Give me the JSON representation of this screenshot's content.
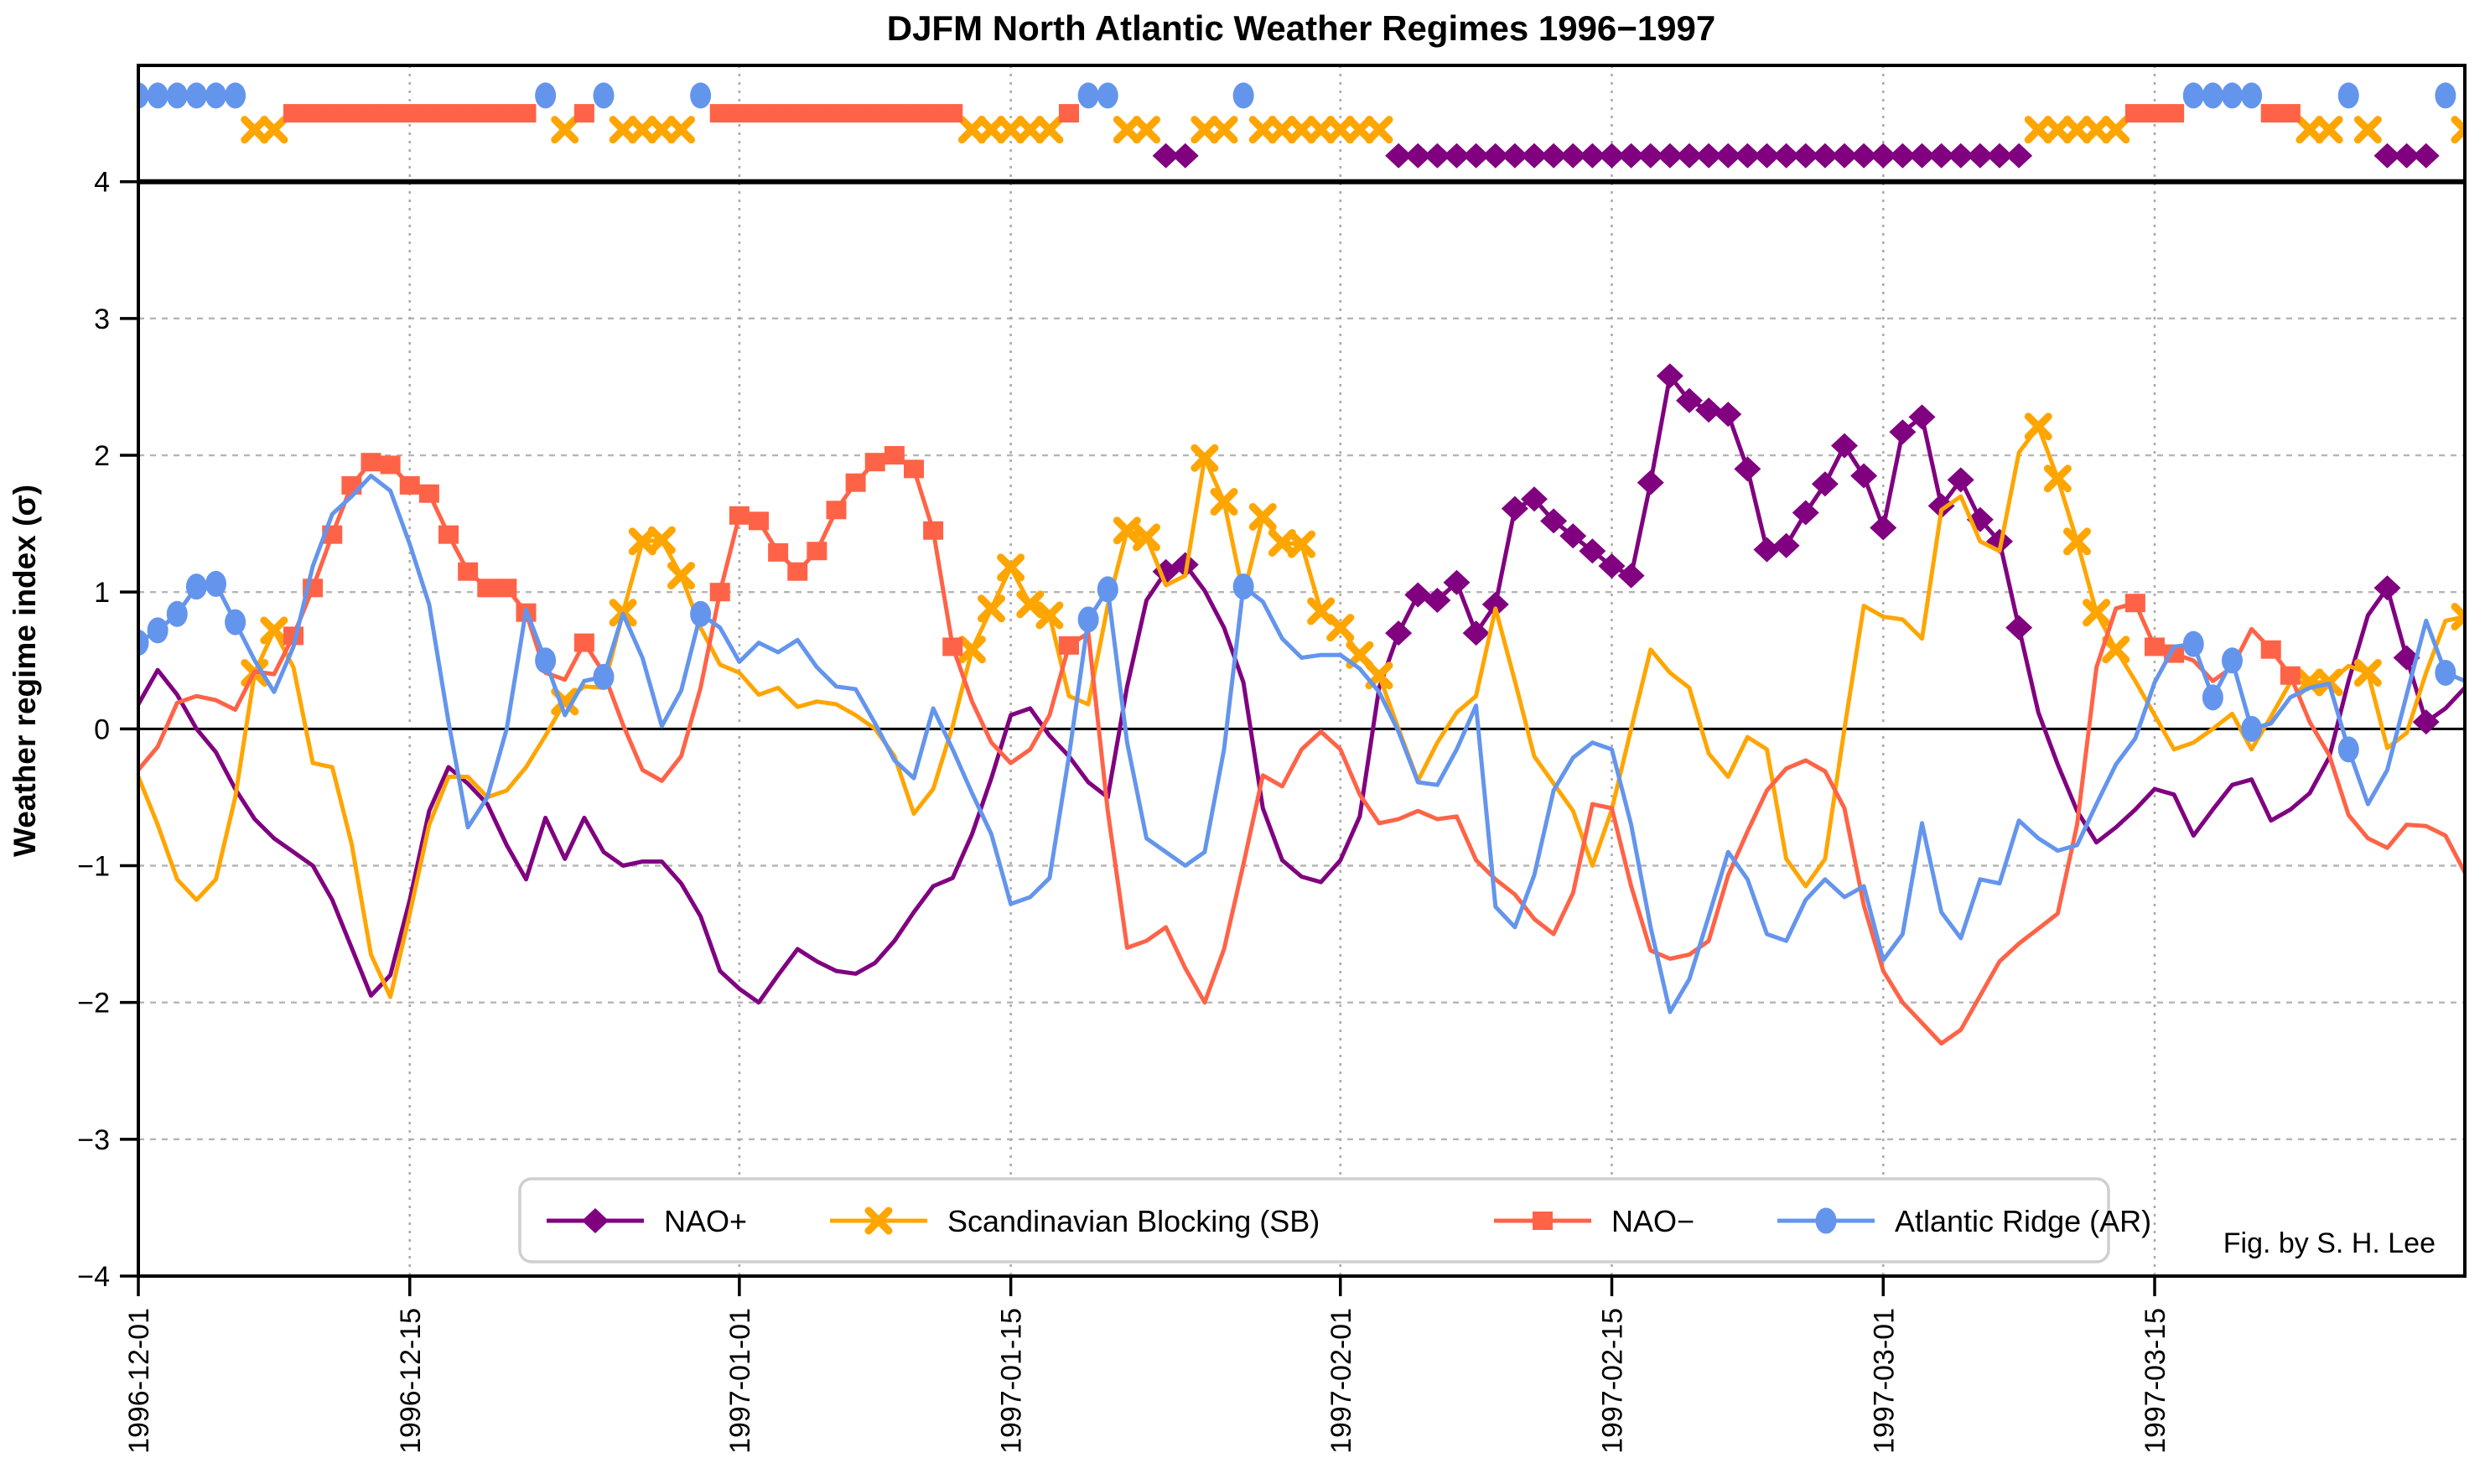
{
  "title": "DJFM North Atlantic Weather Regimes 1996−1997",
  "credit": "Fig. by S. H. Lee",
  "y_axis": {
    "label": "Weather regime index (σ)",
    "tick_values": [
      -4,
      -3,
      -2,
      -1,
      0,
      1,
      2,
      3,
      4
    ],
    "tick_labels": [
      "−4",
      "−3",
      "−2",
      "−1",
      "0",
      "1",
      "2",
      "3",
      "4"
    ],
    "lim": [
      -4,
      4.85
    ]
  },
  "x_axis": {
    "tick_labels": [
      "1996-12-01",
      "1996-12-15",
      "1997-01-01",
      "1997-01-15",
      "1997-02-01",
      "1997-02-15",
      "1997-03-01",
      "1997-03-15"
    ],
    "tick_day_index": [
      0,
      14,
      31,
      45,
      62,
      76,
      90,
      104
    ]
  },
  "legend": {
    "items": [
      {
        "id": "NAO+",
        "label": "NAO+"
      },
      {
        "id": "SB",
        "label": "Scandinavian Blocking (SB)"
      },
      {
        "id": "NAO-",
        "label": "NAO−"
      },
      {
        "id": "AR",
        "label": "Atlantic Ridge (AR)"
      }
    ]
  },
  "chart_data": {
    "type": "line",
    "title": "DJFM North Atlantic Weather Regimes 1996−1997",
    "ylabel": "Weather regime index (σ)",
    "ylim": [
      -4,
      4.85
    ],
    "grid": {
      "horizontal": "dashed at integer σ",
      "vertical": "dotted at major date ticks"
    },
    "legend_position": "bottom center inside",
    "x": [
      "1996-12-01",
      "1996-12-02",
      "1996-12-03",
      "1996-12-04",
      "1996-12-05",
      "1996-12-06",
      "1996-12-07",
      "1996-12-08",
      "1996-12-09",
      "1996-12-10",
      "1996-12-11",
      "1996-12-12",
      "1996-12-13",
      "1996-12-14",
      "1996-12-15",
      "1996-12-16",
      "1996-12-17",
      "1996-12-18",
      "1996-12-19",
      "1996-12-20",
      "1996-12-21",
      "1996-12-22",
      "1996-12-23",
      "1996-12-24",
      "1996-12-25",
      "1996-12-26",
      "1996-12-27",
      "1996-12-28",
      "1996-12-29",
      "1996-12-30",
      "1996-12-31",
      "1997-01-01",
      "1997-01-02",
      "1997-01-03",
      "1997-01-04",
      "1997-01-05",
      "1997-01-06",
      "1997-01-07",
      "1997-01-08",
      "1997-01-09",
      "1997-01-10",
      "1997-01-11",
      "1997-01-12",
      "1997-01-13",
      "1997-01-14",
      "1997-01-15",
      "1997-01-16",
      "1997-01-17",
      "1997-01-18",
      "1997-01-19",
      "1997-01-20",
      "1997-01-21",
      "1997-01-22",
      "1997-01-23",
      "1997-01-24",
      "1997-01-25",
      "1997-01-26",
      "1997-01-27",
      "1997-01-28",
      "1997-01-29",
      "1997-01-30",
      "1997-01-31",
      "1997-02-01",
      "1997-02-02",
      "1997-02-03",
      "1997-02-04",
      "1997-02-05",
      "1997-02-06",
      "1997-02-07",
      "1997-02-08",
      "1997-02-09",
      "1997-02-10",
      "1997-02-11",
      "1997-02-12",
      "1997-02-13",
      "1997-02-14",
      "1997-02-15",
      "1997-02-16",
      "1997-02-17",
      "1997-02-18",
      "1997-02-19",
      "1997-02-20",
      "1997-02-21",
      "1997-02-22",
      "1997-02-23",
      "1997-02-24",
      "1997-02-25",
      "1997-02-26",
      "1997-02-27",
      "1997-02-28",
      "1997-03-01",
      "1997-03-02",
      "1997-03-03",
      "1997-03-04",
      "1997-03-05",
      "1997-03-06",
      "1997-03-07",
      "1997-03-08",
      "1997-03-09",
      "1997-03-10",
      "1997-03-11",
      "1997-03-12",
      "1997-03-13",
      "1997-03-14",
      "1997-03-15",
      "1997-03-16",
      "1997-03-17",
      "1997-03-18",
      "1997-03-19",
      "1997-03-20",
      "1997-03-21",
      "1997-03-22",
      "1997-03-23",
      "1997-03-24",
      "1997-03-25",
      "1997-03-26",
      "1997-03-27",
      "1997-03-28",
      "1997-03-29",
      "1997-03-30",
      "1997-03-31"
    ],
    "series": [
      {
        "id": "NAO+",
        "name": "NAO+",
        "marker": "diamond",
        "color": "#800080",
        "strip_y": 4.19,
        "values": [
          0.18,
          0.43,
          0.25,
          0.0,
          -0.17,
          -0.44,
          -0.66,
          -0.8,
          -0.9,
          -1.0,
          -1.25,
          -1.6,
          -1.95,
          -1.8,
          -1.25,
          -0.6,
          -0.28,
          -0.4,
          -0.55,
          -0.85,
          -1.1,
          -0.65,
          -0.95,
          -0.65,
          -0.9,
          -1.0,
          -0.97,
          -0.97,
          -1.13,
          -1.37,
          -1.77,
          -1.9,
          -2.0,
          -1.8,
          -1.61,
          -1.7,
          -1.77,
          -1.79,
          -1.71,
          -1.55,
          -1.34,
          -1.15,
          -1.09,
          -0.77,
          -0.36,
          0.1,
          0.15,
          -0.05,
          -0.2,
          -0.39,
          -0.5,
          0.31,
          0.94,
          1.15,
          1.2,
          1.01,
          0.74,
          0.34,
          -0.58,
          -0.96,
          -1.08,
          -1.12,
          -0.96,
          -0.64,
          0.3,
          0.7,
          0.98,
          0.94,
          1.07,
          0.7,
          0.91,
          1.61,
          1.68,
          1.52,
          1.41,
          1.3,
          1.19,
          1.12,
          1.8,
          2.58,
          2.4,
          2.33,
          2.3,
          1.9,
          1.31,
          1.34,
          1.58,
          1.79,
          2.07,
          1.85,
          1.47,
          2.17,
          2.28,
          1.63,
          1.82,
          1.53,
          1.37,
          0.74,
          0.12,
          -0.26,
          -0.6,
          -0.83,
          -0.72,
          -0.59,
          -0.44,
          -0.48,
          -0.78,
          -0.59,
          -0.41,
          -0.37,
          -0.67,
          -0.59,
          -0.47,
          -0.21,
          0.35,
          0.83,
          1.03,
          0.52,
          0.05,
          0.15,
          0.3
        ]
      },
      {
        "id": "SB",
        "name": "Scandinavian Blocking (SB)",
        "marker": "x",
        "color": "#FFA500",
        "strip_y": 4.38,
        "values": [
          -0.35,
          -0.7,
          -1.1,
          -1.25,
          -1.1,
          -0.5,
          0.41,
          0.72,
          0.45,
          -0.25,
          -0.28,
          -0.84,
          -1.65,
          -1.96,
          -1.35,
          -0.7,
          -0.35,
          -0.35,
          -0.5,
          -0.45,
          -0.28,
          -0.05,
          0.2,
          0.31,
          0.3,
          0.85,
          1.37,
          1.38,
          1.12,
          0.74,
          0.47,
          0.41,
          0.25,
          0.3,
          0.16,
          0.2,
          0.18,
          0.1,
          0.0,
          -0.2,
          -0.62,
          -0.44,
          0.02,
          0.58,
          0.88,
          1.18,
          0.91,
          0.83,
          0.24,
          0.18,
          0.9,
          1.45,
          1.4,
          1.05,
          1.12,
          1.98,
          1.66,
          0.98,
          1.55,
          1.36,
          1.35,
          0.86,
          0.74,
          0.54,
          0.39,
          0.0,
          -0.38,
          -0.1,
          0.12,
          0.24,
          0.88,
          0.35,
          -0.2,
          -0.4,
          -0.6,
          -1.0,
          -0.59,
          0.0,
          0.58,
          0.41,
          0.3,
          -0.18,
          -0.35,
          -0.06,
          -0.15,
          -0.95,
          -1.15,
          -0.95,
          0.0,
          0.9,
          0.82,
          0.8,
          0.66,
          1.6,
          1.7,
          1.37,
          1.3,
          2.02,
          2.21,
          1.83,
          1.37,
          0.85,
          0.58,
          0.35,
          0.1,
          -0.15,
          -0.1,
          0.0,
          0.11,
          -0.15,
          0.09,
          0.34,
          0.34,
          0.34,
          0.46,
          0.41,
          -0.14,
          -0.03,
          0.41,
          0.79,
          0.82
        ]
      },
      {
        "id": "NAO-",
        "name": "NAO−",
        "marker": "square",
        "color": "#FF6347",
        "strip_y": 4.5,
        "values": [
          -0.3,
          -0.13,
          0.19,
          0.24,
          0.21,
          0.14,
          0.42,
          0.4,
          0.68,
          1.03,
          1.42,
          1.78,
          1.95,
          1.93,
          1.78,
          1.72,
          1.42,
          1.15,
          1.03,
          1.03,
          0.85,
          0.41,
          0.36,
          0.63,
          0.41,
          0.03,
          -0.3,
          -0.38,
          -0.2,
          0.3,
          1.0,
          1.56,
          1.52,
          1.29,
          1.15,
          1.3,
          1.6,
          1.8,
          1.95,
          2.0,
          1.9,
          1.45,
          0.6,
          0.2,
          -0.1,
          -0.25,
          -0.15,
          0.1,
          0.61,
          0.7,
          -0.6,
          -1.6,
          -1.55,
          -1.45,
          -1.75,
          -2.0,
          -1.61,
          -0.99,
          -0.34,
          -0.42,
          -0.15,
          -0.02,
          -0.15,
          -0.48,
          -0.69,
          -0.66,
          -0.6,
          -0.66,
          -0.64,
          -0.96,
          -1.1,
          -1.21,
          -1.39,
          -1.5,
          -1.2,
          -0.55,
          -0.58,
          -1.15,
          -1.62,
          -1.68,
          -1.65,
          -1.55,
          -1.07,
          -0.75,
          -0.45,
          -0.29,
          -0.23,
          -0.31,
          -0.58,
          -1.29,
          -1.77,
          -2.0,
          -2.15,
          -2.3,
          -2.2,
          -1.95,
          -1.7,
          -1.57,
          -1.46,
          -1.35,
          -0.7,
          0.45,
          0.88,
          0.92,
          0.6,
          0.55,
          0.5,
          0.35,
          0.45,
          0.73,
          0.58,
          0.39,
          0.05,
          -0.19,
          -0.63,
          -0.8,
          -0.87,
          -0.7,
          -0.71,
          -0.78,
          -1.05
        ]
      },
      {
        "id": "AR",
        "name": "Atlantic Ridge (AR)",
        "marker": "circle",
        "color": "#6495ED",
        "strip_y": 4.63,
        "values": [
          0.63,
          0.72,
          0.84,
          1.04,
          1.06,
          0.78,
          0.5,
          0.27,
          0.6,
          1.19,
          1.57,
          1.7,
          1.85,
          1.74,
          1.35,
          0.91,
          0.05,
          -0.72,
          -0.5,
          0.0,
          0.87,
          0.5,
          0.1,
          0.35,
          0.38,
          0.84,
          0.52,
          0.02,
          0.28,
          0.84,
          0.74,
          0.49,
          0.63,
          0.56,
          0.65,
          0.45,
          0.31,
          0.29,
          0.04,
          -0.23,
          -0.36,
          0.15,
          -0.15,
          -0.47,
          -0.77,
          -1.28,
          -1.23,
          -1.09,
          -0.2,
          0.8,
          1.02,
          -0.1,
          -0.8,
          -0.9,
          -1.0,
          -0.9,
          -0.15,
          1.04,
          0.93,
          0.66,
          0.52,
          0.54,
          0.54,
          0.44,
          0.27,
          -0.02,
          -0.39,
          -0.41,
          -0.15,
          0.17,
          -1.3,
          -1.45,
          -1.07,
          -0.45,
          -0.21,
          -0.1,
          -0.15,
          -0.7,
          -1.45,
          -2.07,
          -1.83,
          -1.37,
          -0.9,
          -1.1,
          -1.5,
          -1.55,
          -1.25,
          -1.1,
          -1.23,
          -1.15,
          -1.69,
          -1.5,
          -0.69,
          -1.34,
          -1.53,
          -1.1,
          -1.13,
          -0.67,
          -0.8,
          -0.89,
          -0.85,
          -0.55,
          -0.26,
          -0.07,
          0.34,
          0.6,
          0.62,
          0.23,
          0.5,
          0.0,
          0.04,
          0.23,
          0.3,
          0.33,
          -0.15,
          -0.55,
          -0.3,
          0.25,
          0.79,
          0.41,
          0.35
        ]
      }
    ],
    "dominant_regime": [
      "AR",
      "AR",
      "AR",
      "AR",
      "AR",
      "AR",
      "SB",
      "SB",
      "NAO-",
      "NAO-",
      "NAO-",
      "NAO-",
      "NAO-",
      "NAO-",
      "NAO-",
      "NAO-",
      "NAO-",
      "NAO-",
      "NAO-",
      "NAO-",
      "NAO-",
      "AR",
      "SB",
      "NAO-",
      "AR",
      "SB",
      "SB",
      "SB",
      "SB",
      "AR",
      "NAO-",
      "NAO-",
      "NAO-",
      "NAO-",
      "NAO-",
      "NAO-",
      "NAO-",
      "NAO-",
      "NAO-",
      "NAO-",
      "NAO-",
      "NAO-",
      "NAO-",
      "SB",
      "SB",
      "SB",
      "SB",
      "SB",
      "NAO-",
      "AR",
      "AR",
      "SB",
      "SB",
      "NAO+",
      "NAO+",
      "SB",
      "SB",
      "AR",
      "SB",
      "SB",
      "SB",
      "SB",
      "SB",
      "SB",
      "SB",
      "NAO+",
      "NAO+",
      "NAO+",
      "NAO+",
      "NAO+",
      "NAO+",
      "NAO+",
      "NAO+",
      "NAO+",
      "NAO+",
      "NAO+",
      "NAO+",
      "NAO+",
      "NAO+",
      "NAO+",
      "NAO+",
      "NAO+",
      "NAO+",
      "NAO+",
      "NAO+",
      "NAO+",
      "NAO+",
      "NAO+",
      "NAO+",
      "NAO+",
      "NAO+",
      "NAO+",
      "NAO+",
      "NAO+",
      "NAO+",
      "NAO+",
      "NAO+",
      "NAO+",
      "SB",
      "SB",
      "SB",
      "SB",
      "SB",
      "NAO-",
      "NAO-",
      "NAO-",
      "AR",
      "AR",
      "AR",
      "AR",
      "NAO-",
      "NAO-",
      "SB",
      "SB",
      "AR",
      "SB",
      "NAO+",
      "NAO+",
      "NAO+",
      "AR",
      "SB",
      "SB"
    ]
  }
}
